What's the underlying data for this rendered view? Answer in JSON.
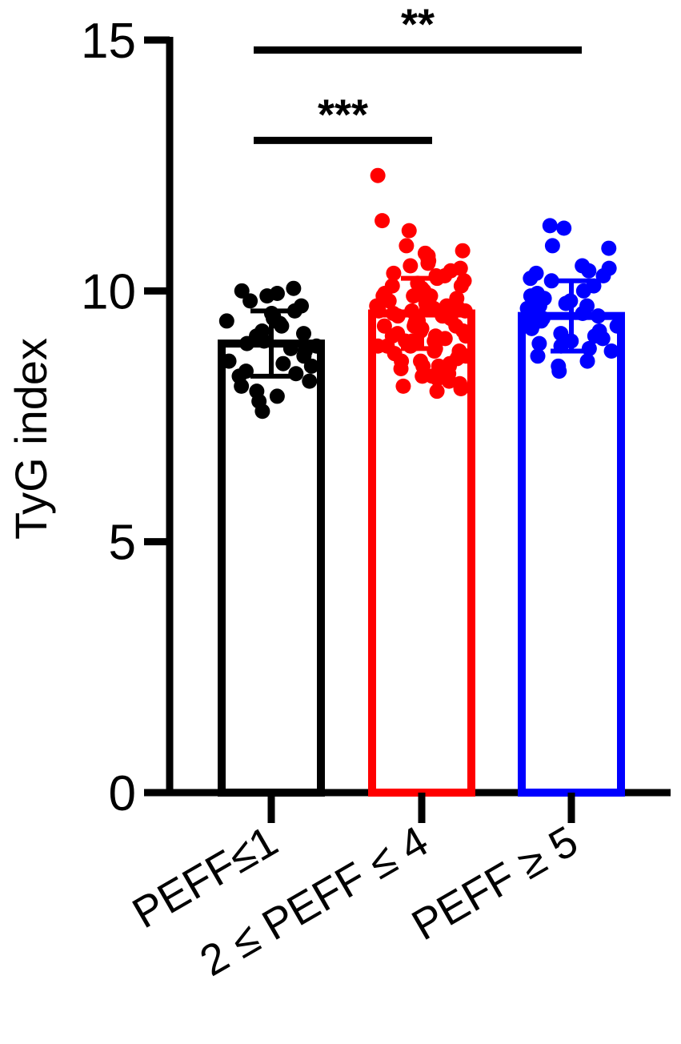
{
  "chart_data": {
    "type": "bar",
    "ylabel": "TyG index",
    "ylim": [
      0,
      15
    ],
    "yticks": [
      0,
      5,
      10,
      15
    ],
    "grid": false,
    "categories": [
      "PEFF≤1",
      "2 ≤ PEFF ≤ 4",
      "PEFF ≥ 5"
    ],
    "series": [
      {
        "category": "PEFF≤1",
        "color": "#000000",
        "mean": 8.95,
        "sd": 0.65,
        "points": [
          10.0,
          10.05,
          9.95,
          9.9,
          9.8,
          9.7,
          9.6,
          9.55,
          9.5,
          9.45,
          9.4,
          9.35,
          9.3,
          9.2,
          9.15,
          9.1,
          9.0,
          8.95,
          8.9,
          8.85,
          8.8,
          8.7,
          8.6,
          8.55,
          8.5,
          8.4,
          8.35,
          8.3,
          8.2,
          8.1,
          8.0,
          7.9,
          7.8,
          7.6
        ]
      },
      {
        "category": "2 ≤ PEFF ≤ 4",
        "color": "#ff0000",
        "mean": 9.55,
        "sd": 0.7,
        "points": [
          12.3,
          11.4,
          11.2,
          10.9,
          10.8,
          10.75,
          10.7,
          10.65,
          10.6,
          10.55,
          10.5,
          10.45,
          10.4,
          10.35,
          10.3,
          10.25,
          10.2,
          10.15,
          10.1,
          10.05,
          10.0,
          10.0,
          9.95,
          9.9,
          9.9,
          9.85,
          9.8,
          9.8,
          9.75,
          9.7,
          9.7,
          9.65,
          9.6,
          9.6,
          9.55,
          9.5,
          9.5,
          9.45,
          9.4,
          9.4,
          9.35,
          9.3,
          9.3,
          9.25,
          9.2,
          9.2,
          9.15,
          9.1,
          9.1,
          9.05,
          9.0,
          9.0,
          8.95,
          8.9,
          8.9,
          8.85,
          8.8,
          8.8,
          8.75,
          8.7,
          8.7,
          8.65,
          8.6,
          8.6,
          8.55,
          8.5,
          8.5,
          8.45,
          8.4,
          8.35,
          8.3,
          8.25,
          8.2,
          8.15,
          8.1,
          8.05,
          8.0,
          10.1,
          9.9,
          9.7,
          9.5,
          9.3,
          9.1,
          8.9,
          8.7,
          8.5,
          8.3,
          10.3,
          9.6,
          9.0
        ]
      },
      {
        "category": "PEFF ≥ 5",
        "color": "#0000ff",
        "mean": 9.5,
        "sd": 0.7,
        "points": [
          11.3,
          11.25,
          10.9,
          10.85,
          10.5,
          10.45,
          10.4,
          10.35,
          10.3,
          10.25,
          10.2,
          10.1,
          10.0,
          9.95,
          9.9,
          9.85,
          9.8,
          9.75,
          9.7,
          9.65,
          9.6,
          9.55,
          9.5,
          9.45,
          9.4,
          9.35,
          9.3,
          9.25,
          9.2,
          9.15,
          9.1,
          9.05,
          9.0,
          8.95,
          8.9,
          8.85,
          8.8,
          8.7,
          8.6,
          8.5,
          8.4,
          9.7,
          9.5,
          9.3
        ]
      }
    ],
    "significance": [
      {
        "from": 0,
        "to": 1,
        "label": "***",
        "y": 13.0
      },
      {
        "from": 0,
        "to": 2,
        "label": "**",
        "y": 14.8
      }
    ]
  }
}
